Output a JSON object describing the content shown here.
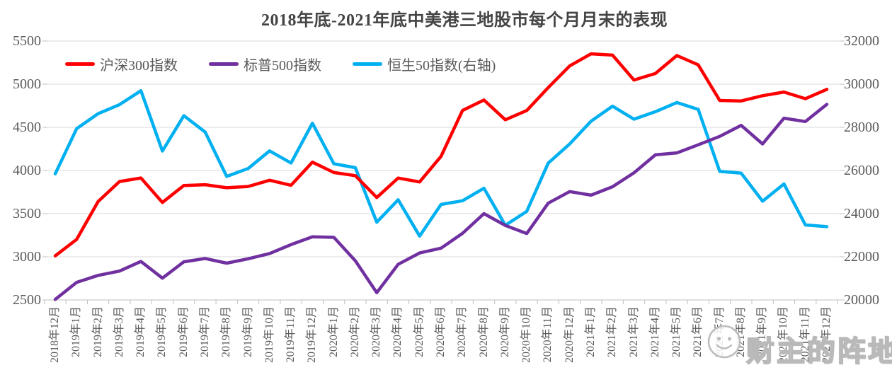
{
  "title": "2018年底-2021年底中美港三地股市每个月月末的表现",
  "legend": [
    {
      "label": "沪深300指数",
      "color": "#fe0000"
    },
    {
      "label": "标普500指数",
      "color": "#7030a0"
    },
    {
      "label": "恒生50指数(右轴)",
      "color": "#00b0f0"
    }
  ],
  "axes": {
    "left_ticks": [
      "5500",
      "5000",
      "4500",
      "4000",
      "3500",
      "3000",
      "2500"
    ],
    "right_ticks": [
      "32000",
      "30000",
      "28000",
      "26000",
      "24000",
      "22000",
      "20000"
    ]
  },
  "watermark": {
    "text": "财主的阵地",
    "logo": "face-logo-icon"
  },
  "colors": {
    "grid": "#d9d9d9",
    "axis": "#bfbfbf",
    "tick_text": "#595959",
    "title_text": "#444444"
  },
  "chart_data": {
    "type": "line",
    "title": "2018年底-2021年底中美港三地股市每个月月末的表现",
    "categories": [
      "2018年12月",
      "2019年1月",
      "2019年2月",
      "2019年3月",
      "2019年4月",
      "2019年5月",
      "2019年6月",
      "2019年7月",
      "2019年8月",
      "2019年9月",
      "2019年10月",
      "2019年11月",
      "2019年12月",
      "2020年1月",
      "2020年2月",
      "2020年3月",
      "2020年4月",
      "2020年5月",
      "2020年6月",
      "2020年7月",
      "2020年8月",
      "2020年9月",
      "2020年10月",
      "2020年11月",
      "2020年12月",
      "2021年1月",
      "2021年2月",
      "2021年3月",
      "2021年4月",
      "2021年5月",
      "2021年6月",
      "2021年7月",
      "2021年8月",
      "2021年9月",
      "2021年10月",
      "2021年11月",
      "2021年12月"
    ],
    "series": [
      {
        "name": "恒生50指数(右轴)",
        "axis": "right",
        "color": "#00b0f0",
        "values": [
          25845.7,
          27942.5,
          28633.2,
          29051.4,
          29699.1,
          26901.1,
          28542.6,
          27777.8,
          25724.7,
          26092.3,
          26906.7,
          26346.5,
          28189.8,
          26312.6,
          26129.9,
          23603.5,
          24643.6,
          22961.5,
          24427.2,
          24595.4,
          25177.1,
          23459.1,
          24107.4,
          26341.5,
          27231.1,
          28283.7,
          28980.2,
          28378.4,
          28724.9,
          29151.8,
          28828.0,
          25961.0,
          25879.0,
          24575.6,
          25377.2,
          23475.3,
          23397.7
        ]
      },
      {
        "name": "标普500指数",
        "axis": "left",
        "color": "#7030a0",
        "values": [
          2506.9,
          2704.1,
          2784.5,
          2834.4,
          2945.8,
          2752.1,
          2941.8,
          2980.4,
          2926.5,
          2976.7,
          3037.6,
          3141.0,
          3230.8,
          3225.5,
          2954.2,
          2584.6,
          2912.4,
          3044.3,
          3100.3,
          3271.1,
          3500.3,
          3363.0,
          3270.0,
          3621.6,
          3756.1,
          3714.2,
          3811.2,
          3972.9,
          4181.2,
          4204.1,
          4297.5,
          4395.3,
          4522.7,
          4307.5,
          4605.4,
          4567.0,
          4766.2
        ]
      },
      {
        "name": "沪深300指数",
        "axis": "left",
        "color": "#fe0000",
        "values": [
          3010.7,
          3201.6,
          3640.1,
          3872.3,
          3913.2,
          3629.8,
          3825.9,
          3835.2,
          3799.6,
          3814.6,
          3886.8,
          3828.8,
          4096.6,
          3976.1,
          3940.1,
          3686.8,
          3912.6,
          3867.0,
          4164.0,
          4695.1,
          4816.2,
          4587.4,
          4695.3,
          4960.3,
          5211.3,
          5352.0,
          5336.8,
          5048.4,
          5123.5,
          5331.6,
          5224.0,
          4811.2,
          4805.6,
          4866.4,
          4908.8,
          4832.0,
          4940.4
        ]
      }
    ],
    "left_axis": {
      "min": 2500,
      "max": 5500,
      "tick": 500
    },
    "right_axis": {
      "min": 20000,
      "max": 32000,
      "tick": 2000
    },
    "grid": true,
    "legend_position": "top-left",
    "xlabel": "",
    "ylabel_left": "",
    "ylabel_right": ""
  }
}
